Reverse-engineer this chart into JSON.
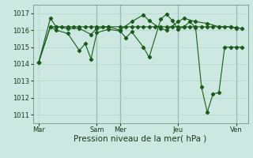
{
  "background_color": "#cce8e0",
  "grid_color": "#b0d4cc",
  "line_color": "#1a5c1a",
  "marker_color": "#1a5c1a",
  "xlabel": "Pression niveau de la mer( hPa )",
  "xlabel_fontsize": 7.5,
  "ylim": [
    1010.5,
    1017.5
  ],
  "yticks": [
    1011,
    1012,
    1013,
    1014,
    1015,
    1016,
    1017
  ],
  "xtick_labels": [
    "Mar",
    "Sam",
    "Mer",
    "Jeu",
    "Ven"
  ],
  "xtick_positions": [
    0,
    10,
    14,
    24,
    34
  ],
  "vline_positions": [
    10,
    14,
    24,
    34
  ],
  "xlim": [
    -1,
    36
  ],
  "series1_x": [
    0,
    2,
    3,
    4,
    5,
    6,
    7,
    8,
    9,
    10,
    11,
    12,
    14,
    15,
    16,
    17,
    18,
    19,
    20,
    21,
    22,
    23,
    24,
    25,
    26,
    27,
    28,
    29,
    30,
    31,
    32,
    33,
    34,
    35
  ],
  "series1_y": [
    1014.1,
    1016.2,
    1016.2,
    1016.2,
    1016.2,
    1016.2,
    1016.2,
    1016.2,
    1016.2,
    1016.2,
    1016.2,
    1016.2,
    1016.2,
    1016.2,
    1016.2,
    1016.2,
    1016.2,
    1016.2,
    1016.2,
    1016.2,
    1016.2,
    1016.2,
    1016.2,
    1016.2,
    1016.2,
    1016.2,
    1016.2,
    1016.2,
    1016.2,
    1016.2,
    1016.2,
    1016.2,
    1016.15,
    1016.1
  ],
  "series2_x": [
    0,
    2,
    3,
    5,
    7,
    9,
    10,
    12,
    14,
    16,
    18,
    19,
    21,
    22,
    24,
    25,
    27,
    29,
    31,
    33,
    34
  ],
  "series2_y": [
    1014.1,
    1016.7,
    1016.2,
    1016.1,
    1016.1,
    1015.75,
    1016.1,
    1016.2,
    1016.0,
    1016.5,
    1016.9,
    1016.55,
    1016.1,
    1016.0,
    1016.5,
    1016.7,
    1016.5,
    1016.4,
    1016.2,
    1016.2,
    1016.1
  ],
  "series3_x": [
    0,
    2,
    3,
    5,
    7,
    8,
    9,
    10,
    12,
    14,
    15,
    16,
    18,
    19,
    21,
    22,
    23,
    24,
    25,
    26,
    27,
    28,
    29,
    30,
    31,
    32,
    33,
    34,
    35
  ],
  "series3_y": [
    1014.1,
    1016.2,
    1016.0,
    1015.8,
    1014.8,
    1015.2,
    1014.3,
    1015.85,
    1016.05,
    1015.95,
    1015.55,
    1015.9,
    1015.0,
    1014.4,
    1016.65,
    1016.95,
    1016.55,
    1016.05,
    1016.2,
    1016.5,
    1016.15,
    1012.65,
    1011.15,
    1012.25,
    1012.3,
    1015.0,
    1015.0,
    1015.0,
    1015.0
  ]
}
